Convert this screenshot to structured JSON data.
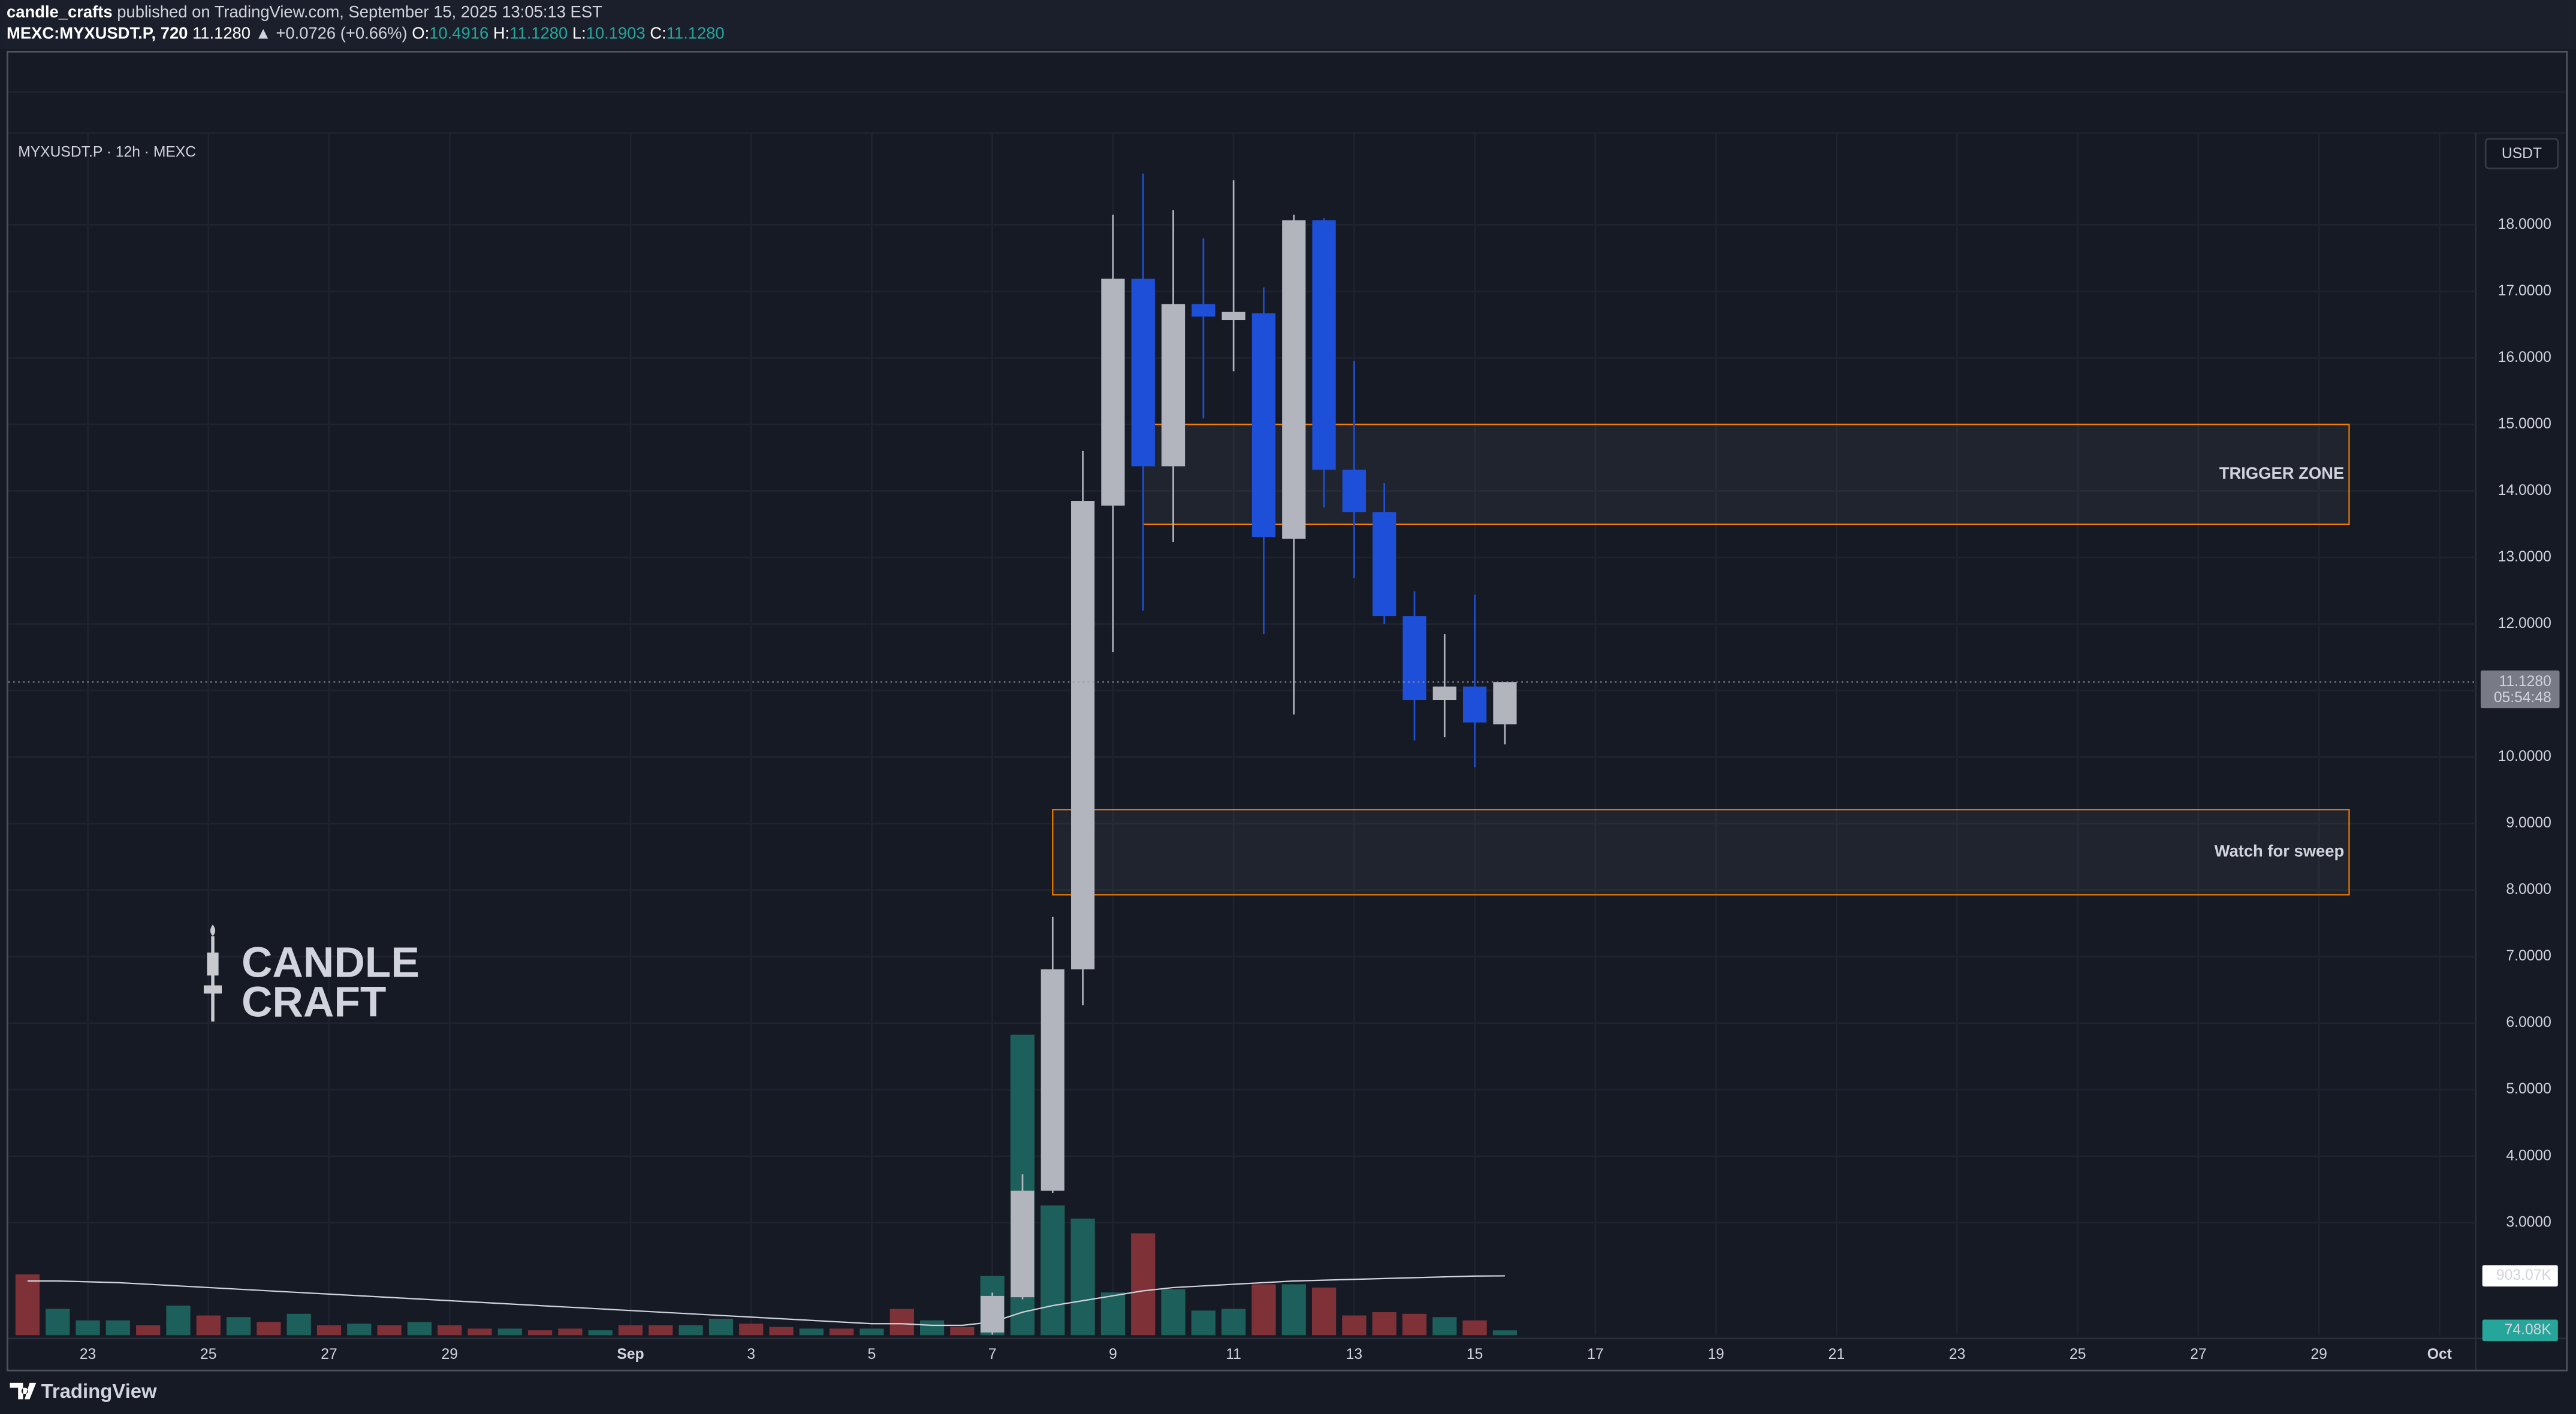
{
  "header": {
    "author": "candle_crafts",
    "published": "published on TradingView.com, September 15, 2025 13:05:13 EST",
    "symbol": "MEXC:MYXUSDT.P, 720",
    "last": "11.1280",
    "change": "▲ +0.0726 (+0.66%)",
    "ohlc": [
      {
        "label": "O:",
        "value": "10.4916"
      },
      {
        "label": "H:",
        "value": "11.1280"
      },
      {
        "label": "L:",
        "value": "10.1903"
      },
      {
        "label": "C:",
        "value": "11.1280"
      }
    ]
  },
  "chart_data": {
    "type": "candlestick",
    "title": "MYXUSDT.P · 12h · MEXC",
    "currency": "USDT",
    "grid": true,
    "xlim": [
      -0.64,
      81.2
    ],
    "xticks": [
      {
        "value": 2,
        "label": "23"
      },
      {
        "value": 6,
        "label": "25"
      },
      {
        "value": 10,
        "label": "27"
      },
      {
        "value": 14,
        "label": "29"
      },
      {
        "value": 20,
        "label": "Sep"
      },
      {
        "value": 24,
        "label": "3"
      },
      {
        "value": 28,
        "label": "5"
      },
      {
        "value": 32,
        "label": "7"
      },
      {
        "value": 36,
        "label": "9"
      },
      {
        "value": 40,
        "label": "11"
      },
      {
        "value": 44,
        "label": "13"
      },
      {
        "value": 48,
        "label": "15"
      },
      {
        "value": 52,
        "label": "17"
      },
      {
        "value": 56,
        "label": "19"
      },
      {
        "value": 60,
        "label": "21"
      },
      {
        "value": 64,
        "label": "23"
      },
      {
        "value": 68,
        "label": "25"
      },
      {
        "value": 72,
        "label": "27"
      },
      {
        "value": 76,
        "label": "29"
      },
      {
        "value": 80,
        "label": "Oct"
      }
    ],
    "ylim": [
      1.31,
      19.38
    ],
    "yticks": [
      {
        "value": 3,
        "label": "3.0000"
      },
      {
        "value": 4,
        "label": "4.0000"
      },
      {
        "value": 5,
        "label": "5.0000"
      },
      {
        "value": 6,
        "label": "6.0000"
      },
      {
        "value": 7,
        "label": "7.0000"
      },
      {
        "value": 8,
        "label": "8.0000"
      },
      {
        "value": 9,
        "label": "9.0000"
      },
      {
        "value": 10,
        "label": "10.0000"
      },
      {
        "value": 11,
        "label": "11.0000"
      },
      {
        "value": 12,
        "label": "12.0000"
      },
      {
        "value": 13,
        "label": "13.0000"
      },
      {
        "value": 14,
        "label": "14.0000"
      },
      {
        "value": 15,
        "label": "15.0000"
      },
      {
        "value": 16,
        "label": "16.0000"
      },
      {
        "value": 17,
        "label": "17.0000"
      },
      {
        "value": 18,
        "label": "18.0000"
      }
    ],
    "candles": {
      "up_color": "#b2b5be",
      "down_color": "#1e4fd8",
      "open": [
        null,
        null,
        null,
        null,
        null,
        null,
        null,
        null,
        null,
        null,
        null,
        null,
        null,
        null,
        null,
        null,
        null,
        null,
        null,
        null,
        null,
        null,
        null,
        null,
        null,
        null,
        null,
        null,
        null,
        null,
        null,
        null,
        1.35,
        1.88,
        3.48,
        6.81,
        13.78,
        17.19,
        14.37,
        16.81,
        16.57,
        16.67,
        13.28,
        18.07,
        14.32,
        13.68,
        12.12,
        10.86,
        11.06,
        10.4916
      ],
      "high": [
        null,
        null,
        null,
        null,
        null,
        null,
        null,
        null,
        null,
        null,
        null,
        null,
        null,
        null,
        null,
        null,
        null,
        null,
        null,
        null,
        null,
        null,
        null,
        null,
        null,
        null,
        null,
        null,
        null,
        null,
        null,
        null,
        1.95,
        3.73,
        7.6,
        14.6,
        18.15,
        18.77,
        18.22,
        17.8,
        18.67,
        17.06,
        18.15,
        18.1,
        15.95,
        14.12,
        12.49,
        11.85,
        12.44,
        11.128
      ],
      "low": [
        null,
        null,
        null,
        null,
        null,
        null,
        null,
        null,
        null,
        null,
        null,
        null,
        null,
        null,
        null,
        null,
        null,
        null,
        null,
        null,
        null,
        null,
        null,
        null,
        null,
        null,
        null,
        null,
        null,
        null,
        null,
        null,
        1.32,
        1.85,
        3.45,
        6.27,
        11.58,
        12.2,
        13.23,
        15.09,
        15.8,
        11.85,
        10.64,
        13.75,
        12.69,
        12.0,
        10.25,
        10.3,
        9.85,
        10.1903
      ],
      "close": [
        null,
        null,
        null,
        null,
        null,
        null,
        null,
        null,
        null,
        null,
        null,
        null,
        null,
        null,
        null,
        null,
        null,
        null,
        null,
        null,
        null,
        null,
        null,
        null,
        null,
        null,
        null,
        null,
        null,
        null,
        null,
        null,
        1.9,
        3.48,
        6.81,
        13.85,
        17.19,
        14.37,
        16.81,
        16.62,
        16.69,
        13.31,
        18.07,
        14.32,
        13.68,
        12.12,
        10.86,
        11.06,
        10.52,
        11.128
      ]
    },
    "volume": {
      "vlim": [
        0,
        18300000
      ],
      "values": [
        925000,
        400000,
        225000,
        225000,
        150000,
        450000,
        300000,
        275000,
        200000,
        325000,
        150000,
        175000,
        150000,
        200000,
        150000,
        100000,
        100000,
        75000,
        100000,
        75000,
        150000,
        150000,
        150000,
        250000,
        175000,
        125000,
        100000,
        100000,
        100000,
        400000,
        225000,
        125000,
        900000,
        4575000,
        1975000,
        1775000,
        650000,
        1550000,
        700000,
        375000,
        400000,
        775000,
        775000,
        725000,
        300000,
        350000,
        325000,
        275000,
        225000,
        74080
      ],
      "colors": [
        "#7f3138",
        "#1d5f5b",
        "#1d5f5b",
        "#1d5f5b",
        "#7f3138",
        "#1d5f5b",
        "#7f3138",
        "#1d5f5b",
        "#7f3138",
        "#1d5f5b",
        "#7f3138",
        "#1d5f5b",
        "#7f3138",
        "#1d5f5b",
        "#7f3138",
        "#7f3138",
        "#1d5f5b",
        "#7f3138",
        "#7f3138",
        "#1d5f5b",
        "#7f3138",
        "#7f3138",
        "#1d5f5b",
        "#1d5f5b",
        "#7f3138",
        "#7f3138",
        "#1d5f5b",
        "#7f3138",
        "#1d5f5b",
        "#7f3138",
        "#1d5f5b",
        "#7f3138",
        "#1d5f5b",
        "#1d5f5b",
        "#1d5f5b",
        "#1d5f5b",
        "#1d5f5b",
        "#7f3138",
        "#1d5f5b",
        "#1d5f5b",
        "#1d5f5b",
        "#7f3138",
        "#1d5f5b",
        "#7f3138",
        "#7f3138",
        "#7f3138",
        "#7f3138",
        "#1d5f5b",
        "#7f3138",
        "#1d5f5b"
      ],
      "ma": {
        "color": "#d1d4dc",
        "values": [
          825000,
          825000,
          812500,
          800000,
          775000,
          750000,
          725000,
          700000,
          675000,
          650000,
          625000,
          600000,
          575000,
          550000,
          525000,
          500000,
          475000,
          450000,
          425000,
          400000,
          375000,
          350000,
          325000,
          300000,
          275000,
          250000,
          225000,
          200000,
          175000,
          175000,
          150000,
          150000,
          200000,
          350000,
          450000,
          525000,
          600000,
          675000,
          725000,
          750000,
          775000,
          800000,
          825000,
          837500,
          850000,
          862500,
          875000,
          887500,
          900000,
          903070
        ]
      },
      "labels": [
        {
          "value": 903070,
          "label": "903.07K",
          "color": "#ffffff"
        },
        {
          "value": 74080,
          "label": "74.08K",
          "color": "#26a69a"
        }
      ]
    },
    "last_price": {
      "value": 11.128,
      "label": "11.1280",
      "countdown": "05:54:48"
    },
    "zones": [
      {
        "label": "TRIGGER ZONE",
        "from": 37,
        "to": 77,
        "low": 13.5,
        "high": 15.0,
        "color": "#f57c00"
      },
      {
        "label": "Watch for sweep",
        "from": 34,
        "to": 77,
        "low": 7.93,
        "high": 9.21,
        "color": "#f57c00"
      }
    ]
  },
  "watermark": [
    "CANDLE",
    "CRAFT"
  ],
  "footer": "TradingView"
}
